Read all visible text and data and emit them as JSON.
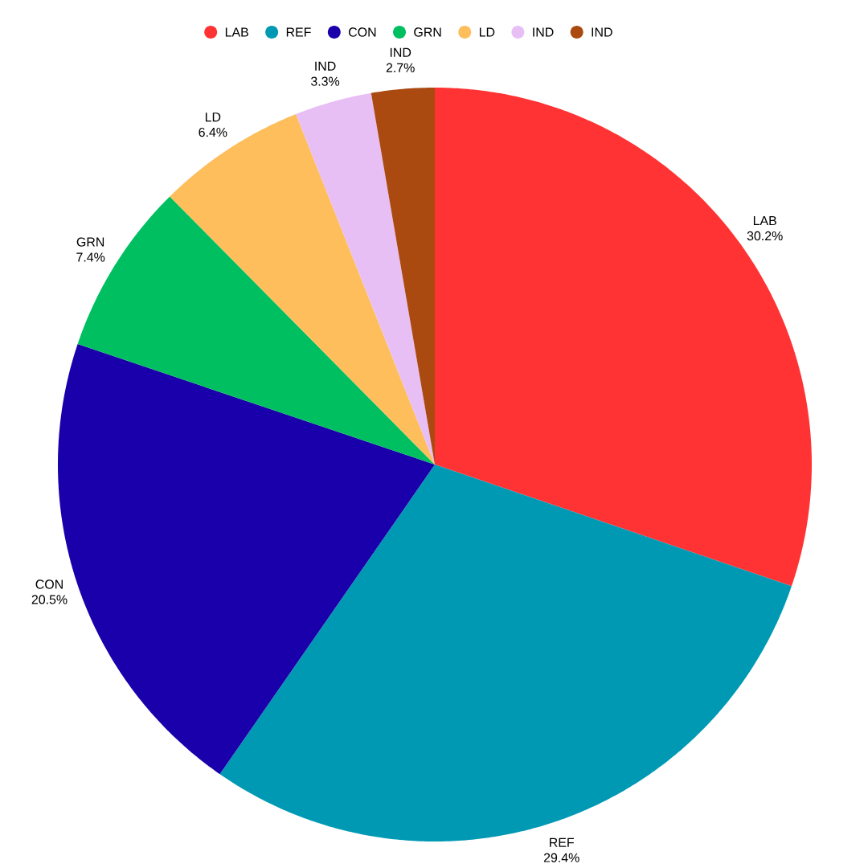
{
  "chart_data": {
    "type": "pie",
    "legend": "top",
    "categories": [
      "LAB",
      "REF",
      "CON",
      "GRN",
      "LD",
      "IND",
      "IND"
    ],
    "values": [
      30.2,
      29.4,
      20.5,
      7.4,
      6.4,
      3.3,
      2.7
    ],
    "value_labels": [
      "30.2%",
      "29.4%",
      "20.5%",
      "7.4%",
      "6.4%",
      "3.3%",
      "2.7%"
    ],
    "colors": [
      "#ff3333",
      "#0099b4",
      "#1a00aa",
      "#00bf60",
      "#fdbe5b",
      "#e8bff5",
      "#aa4a10"
    ]
  }
}
